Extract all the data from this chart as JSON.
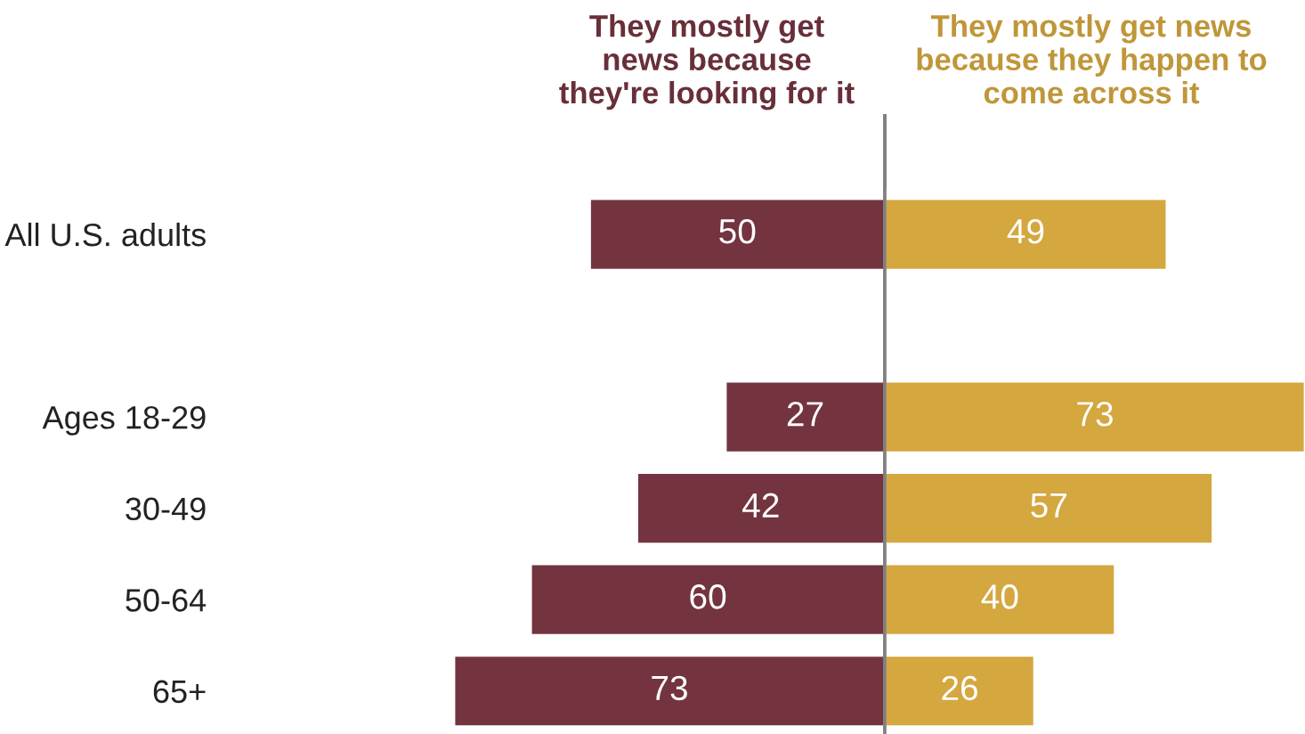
{
  "chart_data": [
    {
      "type": "bar",
      "orientation": "horizontal",
      "categories": [
        "All U.S. adults",
        null,
        "Ages 18-29",
        "30-49",
        "50-64",
        "65+"
      ],
      "series": [
        {
          "name": "They mostly get news because they're looking for it",
          "color": "#73343f",
          "values": [
            50,
            null,
            27,
            42,
            60,
            73
          ]
        }
      ],
      "xlim": [
        73,
        0
      ],
      "data_labels": true,
      "tick_labels": "y"
    },
    {
      "type": "bar",
      "orientation": "horizontal",
      "categories": [
        null,
        null,
        null,
        null,
        null,
        null
      ],
      "series": [
        {
          "name": "They mostly get news because they happen to come across it",
          "color": "#d4a73f",
          "values": [
            49,
            null,
            73,
            57,
            40,
            26
          ]
        }
      ],
      "xlim": [
        0,
        73
      ],
      "data_labels": true,
      "tick_labels": false
    }
  ]
}
